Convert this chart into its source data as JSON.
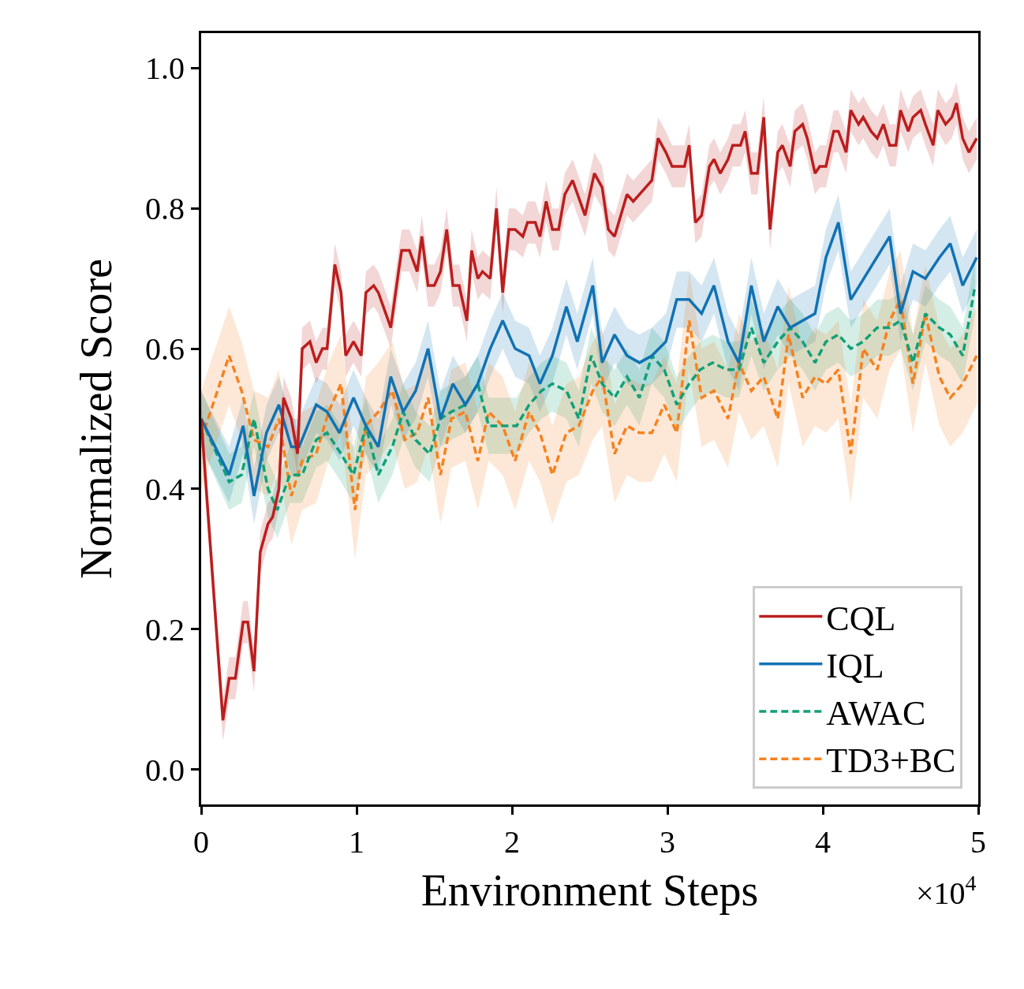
{
  "chart_data": {
    "type": "line",
    "xlabel": "Environment Steps",
    "ylabel": "Normalized Score",
    "annotations": [
      "×10$^{4}$"
    ],
    "xlim": [
      0,
      5
    ],
    "xticks": [
      0,
      1,
      2,
      3,
      4,
      5
    ],
    "ylim": [
      -0.05,
      1.05
    ],
    "yticks": [
      {
        "value": 0,
        "label": "0.0"
      },
      {
        "value": 0.2,
        "label": "0.2"
      },
      {
        "value": 0.4,
        "label": "0.4"
      },
      {
        "value": 0.6,
        "label": "0.6"
      },
      {
        "value": 0.8,
        "label": "0.8"
      },
      {
        "value": 1,
        "label": "1.0"
      }
    ],
    "legend": "bottom right",
    "series": [
      {
        "name": "CQL",
        "color": "#bb1e1e",
        "line_style": "solid",
        "x": [
          0,
          0.14,
          0.18,
          0.22,
          0.27,
          0.3,
          0.34,
          0.38,
          0.43,
          0.46,
          0.5,
          0.53,
          0.58,
          0.62,
          0.65,
          0.7,
          0.74,
          0.78,
          0.81,
          0.86,
          0.9,
          0.93,
          0.98,
          1.03,
          1.06,
          1.11,
          1.14,
          1.22,
          1.27,
          1.29,
          1.34,
          1.39,
          1.42,
          1.46,
          1.5,
          1.54,
          1.58,
          1.62,
          1.66,
          1.71,
          1.74,
          1.78,
          1.81,
          1.86,
          1.9,
          1.94,
          1.98,
          2.02,
          2.07,
          2.1,
          2.15,
          2.18,
          2.22,
          2.26,
          2.3,
          2.34,
          2.39,
          2.47,
          2.53,
          2.58,
          2.62,
          2.66,
          2.74,
          2.78,
          2.86,
          2.9,
          2.94,
          2.99,
          3.03,
          3.06,
          3.11,
          3.14,
          3.18,
          3.22,
          3.27,
          3.3,
          3.34,
          3.39,
          3.42,
          3.47,
          3.5,
          3.54,
          3.58,
          3.62,
          3.66,
          3.71,
          3.74,
          3.79,
          3.82,
          3.87,
          3.9,
          3.95,
          3.98,
          4.02,
          4.07,
          4.1,
          4.15,
          4.18,
          4.23,
          4.26,
          4.31,
          4.35,
          4.39,
          4.43,
          4.47,
          4.5,
          4.55,
          4.58,
          4.63,
          4.66,
          4.71,
          4.74,
          4.79,
          4.83,
          4.86,
          4.9,
          4.94,
          4.99
        ],
        "values": [
          0.5,
          0.07,
          0.13,
          0.13,
          0.21,
          0.21,
          0.14,
          0.31,
          0.35,
          0.36,
          0.4,
          0.53,
          0.5,
          0.45,
          0.6,
          0.61,
          0.58,
          0.6,
          0.6,
          0.72,
          0.68,
          0.59,
          0.61,
          0.59,
          0.68,
          0.69,
          0.68,
          0.63,
          0.71,
          0.74,
          0.74,
          0.71,
          0.76,
          0.69,
          0.69,
          0.71,
          0.77,
          0.69,
          0.69,
          0.64,
          0.74,
          0.7,
          0.71,
          0.7,
          0.8,
          0.68,
          0.77,
          0.77,
          0.76,
          0.78,
          0.78,
          0.76,
          0.81,
          0.77,
          0.77,
          0.82,
          0.84,
          0.79,
          0.85,
          0.83,
          0.77,
          0.76,
          0.82,
          0.81,
          0.83,
          0.84,
          0.9,
          0.88,
          0.86,
          0.86,
          0.86,
          0.89,
          0.78,
          0.79,
          0.86,
          0.87,
          0.85,
          0.87,
          0.89,
          0.89,
          0.91,
          0.85,
          0.85,
          0.93,
          0.77,
          0.88,
          0.89,
          0.86,
          0.91,
          0.92,
          0.9,
          0.85,
          0.86,
          0.86,
          0.91,
          0.91,
          0.88,
          0.94,
          0.92,
          0.93,
          0.91,
          0.9,
          0.92,
          0.89,
          0.89,
          0.94,
          0.91,
          0.93,
          0.94,
          0.92,
          0.89,
          0.94,
          0.92,
          0.93,
          0.95,
          0.9,
          0.88,
          0.9
        ],
        "lower": [
          0.47,
          0.04,
          0.1,
          0.1,
          0.18,
          0.18,
          0.11,
          0.28,
          0.32,
          0.33,
          0.37,
          0.5,
          0.47,
          0.42,
          0.57,
          0.58,
          0.55,
          0.57,
          0.57,
          0.69,
          0.65,
          0.56,
          0.58,
          0.56,
          0.65,
          0.66,
          0.65,
          0.6,
          0.68,
          0.71,
          0.71,
          0.68,
          0.73,
          0.66,
          0.66,
          0.68,
          0.74,
          0.66,
          0.66,
          0.61,
          0.71,
          0.67,
          0.68,
          0.67,
          0.77,
          0.65,
          0.74,
          0.74,
          0.73,
          0.75,
          0.75,
          0.73,
          0.78,
          0.74,
          0.74,
          0.79,
          0.81,
          0.76,
          0.82,
          0.8,
          0.74,
          0.73,
          0.79,
          0.78,
          0.8,
          0.81,
          0.87,
          0.85,
          0.83,
          0.83,
          0.83,
          0.86,
          0.75,
          0.76,
          0.83,
          0.84,
          0.82,
          0.84,
          0.86,
          0.86,
          0.88,
          0.82,
          0.82,
          0.9,
          0.74,
          0.85,
          0.86,
          0.83,
          0.88,
          0.89,
          0.87,
          0.82,
          0.83,
          0.83,
          0.88,
          0.88,
          0.85,
          0.91,
          0.89,
          0.9,
          0.88,
          0.87,
          0.89,
          0.86,
          0.86,
          0.91,
          0.88,
          0.9,
          0.91,
          0.89,
          0.86,
          0.91,
          0.89,
          0.9,
          0.92,
          0.87,
          0.85,
          0.87
        ],
        "upper": [
          0.53,
          0.1,
          0.16,
          0.16,
          0.24,
          0.24,
          0.17,
          0.34,
          0.38,
          0.39,
          0.43,
          0.56,
          0.53,
          0.48,
          0.63,
          0.64,
          0.61,
          0.63,
          0.63,
          0.75,
          0.71,
          0.62,
          0.64,
          0.62,
          0.71,
          0.72,
          0.71,
          0.66,
          0.74,
          0.77,
          0.77,
          0.74,
          0.79,
          0.72,
          0.72,
          0.74,
          0.8,
          0.72,
          0.72,
          0.67,
          0.77,
          0.73,
          0.74,
          0.73,
          0.83,
          0.71,
          0.8,
          0.8,
          0.79,
          0.81,
          0.81,
          0.79,
          0.84,
          0.8,
          0.8,
          0.85,
          0.87,
          0.82,
          0.88,
          0.86,
          0.8,
          0.79,
          0.85,
          0.84,
          0.86,
          0.87,
          0.93,
          0.91,
          0.89,
          0.89,
          0.89,
          0.92,
          0.81,
          0.82,
          0.89,
          0.9,
          0.88,
          0.9,
          0.92,
          0.92,
          0.94,
          0.88,
          0.88,
          0.96,
          0.8,
          0.91,
          0.92,
          0.89,
          0.94,
          0.95,
          0.93,
          0.88,
          0.89,
          0.89,
          0.94,
          0.94,
          0.91,
          0.97,
          0.95,
          0.96,
          0.94,
          0.93,
          0.95,
          0.92,
          0.92,
          0.97,
          0.94,
          0.96,
          0.97,
          0.95,
          0.92,
          0.97,
          0.95,
          0.96,
          0.98,
          0.93,
          0.91,
          0.93
        ]
      },
      {
        "name": "IQL",
        "color": "#1172b3",
        "line_style": "solid",
        "x": [
          0,
          0.18,
          0.27,
          0.34,
          0.42,
          0.5,
          0.58,
          0.63,
          0.74,
          0.81,
          0.89,
          0.98,
          1.06,
          1.14,
          1.22,
          1.3,
          1.38,
          1.46,
          1.54,
          1.62,
          1.7,
          1.78,
          1.86,
          1.94,
          2.02,
          2.11,
          2.18,
          2.26,
          2.35,
          2.42,
          2.52,
          2.58,
          2.66,
          2.74,
          2.82,
          2.9,
          2.99,
          3.06,
          3.14,
          3.22,
          3.3,
          3.39,
          3.46,
          3.54,
          3.62,
          3.71,
          3.79,
          3.87,
          3.95,
          4.02,
          4.1,
          4.18,
          4.43,
          4.5,
          4.58,
          4.66,
          4.75,
          4.82,
          4.9,
          4.99
        ],
        "values": [
          0.5,
          0.42,
          0.49,
          0.39,
          0.48,
          0.52,
          0.46,
          0.46,
          0.52,
          0.51,
          0.48,
          0.53,
          0.49,
          0.46,
          0.56,
          0.51,
          0.54,
          0.6,
          0.5,
          0.55,
          0.52,
          0.55,
          0.6,
          0.64,
          0.6,
          0.59,
          0.55,
          0.59,
          0.66,
          0.61,
          0.69,
          0.58,
          0.62,
          0.59,
          0.58,
          0.59,
          0.61,
          0.67,
          0.67,
          0.65,
          0.69,
          0.61,
          0.58,
          0.69,
          0.61,
          0.66,
          0.63,
          0.64,
          0.65,
          0.73,
          0.78,
          0.67,
          0.76,
          0.65,
          0.71,
          0.7,
          0.73,
          0.75,
          0.69,
          0.73
        ],
        "lower": [
          0.46,
          0.38,
          0.45,
          0.35,
          0.44,
          0.48,
          0.42,
          0.42,
          0.48,
          0.47,
          0.44,
          0.49,
          0.45,
          0.42,
          0.52,
          0.47,
          0.5,
          0.56,
          0.46,
          0.51,
          0.48,
          0.51,
          0.56,
          0.6,
          0.56,
          0.55,
          0.51,
          0.55,
          0.62,
          0.57,
          0.65,
          0.54,
          0.58,
          0.55,
          0.54,
          0.55,
          0.57,
          0.63,
          0.63,
          0.61,
          0.65,
          0.57,
          0.54,
          0.65,
          0.57,
          0.62,
          0.59,
          0.6,
          0.61,
          0.69,
          0.74,
          0.63,
          0.72,
          0.61,
          0.67,
          0.66,
          0.69,
          0.71,
          0.65,
          0.69
        ],
        "upper": [
          0.54,
          0.46,
          0.53,
          0.43,
          0.52,
          0.56,
          0.5,
          0.5,
          0.56,
          0.55,
          0.52,
          0.57,
          0.53,
          0.5,
          0.6,
          0.55,
          0.58,
          0.64,
          0.54,
          0.59,
          0.56,
          0.59,
          0.64,
          0.68,
          0.64,
          0.63,
          0.59,
          0.63,
          0.7,
          0.65,
          0.73,
          0.62,
          0.66,
          0.63,
          0.62,
          0.63,
          0.65,
          0.71,
          0.71,
          0.69,
          0.73,
          0.65,
          0.62,
          0.73,
          0.65,
          0.7,
          0.67,
          0.68,
          0.69,
          0.77,
          0.82,
          0.71,
          0.8,
          0.69,
          0.75,
          0.74,
          0.77,
          0.79,
          0.73,
          0.77
        ]
      },
      {
        "name": "AWAC",
        "color": "#12a077",
        "line_style": "dashed",
        "x": [
          0,
          0.18,
          0.26,
          0.34,
          0.43,
          0.49,
          0.57,
          0.65,
          0.74,
          0.81,
          0.9,
          0.98,
          1.06,
          1.14,
          1.23,
          1.3,
          1.38,
          1.47,
          1.54,
          1.61,
          1.7,
          1.78,
          1.85,
          1.94,
          2.03,
          2.11,
          2.19,
          2.26,
          2.35,
          2.43,
          2.51,
          2.58,
          2.66,
          2.74,
          2.82,
          2.9,
          2.98,
          3.06,
          3.14,
          3.21,
          3.29,
          3.38,
          3.46,
          3.54,
          3.62,
          3.71,
          3.79,
          3.87,
          3.95,
          4.02,
          4.1,
          4.18,
          4.26,
          4.35,
          4.43,
          4.5,
          4.58,
          4.66,
          4.75,
          4.82,
          4.9,
          4.98
        ],
        "values": [
          0.5,
          0.41,
          0.42,
          0.5,
          0.4,
          0.37,
          0.42,
          0.42,
          0.47,
          0.48,
          0.45,
          0.42,
          0.49,
          0.42,
          0.46,
          0.51,
          0.47,
          0.45,
          0.5,
          0.51,
          0.52,
          0.55,
          0.49,
          0.49,
          0.49,
          0.52,
          0.54,
          0.55,
          0.54,
          0.5,
          0.59,
          0.55,
          0.53,
          0.56,
          0.53,
          0.59,
          0.57,
          0.52,
          0.55,
          0.57,
          0.58,
          0.57,
          0.57,
          0.63,
          0.58,
          0.61,
          0.63,
          0.61,
          0.58,
          0.61,
          0.62,
          0.6,
          0.61,
          0.63,
          0.63,
          0.64,
          0.58,
          0.65,
          0.63,
          0.62,
          0.59,
          0.69
        ],
        "lower": [
          0.46,
          0.37,
          0.38,
          0.46,
          0.36,
          0.33,
          0.38,
          0.38,
          0.43,
          0.44,
          0.41,
          0.38,
          0.45,
          0.38,
          0.42,
          0.47,
          0.43,
          0.41,
          0.46,
          0.47,
          0.48,
          0.51,
          0.45,
          0.45,
          0.45,
          0.48,
          0.5,
          0.51,
          0.5,
          0.46,
          0.55,
          0.51,
          0.49,
          0.52,
          0.49,
          0.55,
          0.53,
          0.48,
          0.51,
          0.53,
          0.54,
          0.53,
          0.53,
          0.59,
          0.54,
          0.57,
          0.59,
          0.57,
          0.54,
          0.57,
          0.58,
          0.56,
          0.57,
          0.59,
          0.59,
          0.6,
          0.54,
          0.61,
          0.59,
          0.58,
          0.55,
          0.65
        ],
        "upper": [
          0.54,
          0.45,
          0.46,
          0.54,
          0.44,
          0.41,
          0.46,
          0.46,
          0.51,
          0.52,
          0.49,
          0.46,
          0.53,
          0.46,
          0.5,
          0.55,
          0.51,
          0.49,
          0.54,
          0.55,
          0.56,
          0.59,
          0.53,
          0.53,
          0.53,
          0.56,
          0.58,
          0.59,
          0.58,
          0.54,
          0.63,
          0.59,
          0.57,
          0.6,
          0.57,
          0.63,
          0.61,
          0.56,
          0.59,
          0.61,
          0.62,
          0.61,
          0.61,
          0.67,
          0.62,
          0.65,
          0.67,
          0.65,
          0.62,
          0.65,
          0.66,
          0.64,
          0.65,
          0.67,
          0.67,
          0.68,
          0.62,
          0.69,
          0.67,
          0.66,
          0.63,
          0.73
        ]
      },
      {
        "name": "TD3+BC",
        "color": "#f5821f",
        "line_style": "dashed",
        "x": [
          0,
          0.18,
          0.26,
          0.34,
          0.43,
          0.5,
          0.58,
          0.65,
          0.74,
          0.82,
          0.9,
          0.99,
          1.06,
          1.14,
          1.23,
          1.31,
          1.39,
          1.46,
          1.54,
          1.61,
          1.7,
          1.78,
          1.85,
          1.94,
          2.02,
          2.11,
          2.18,
          2.26,
          2.35,
          2.43,
          2.52,
          2.58,
          2.66,
          2.74,
          2.82,
          2.9,
          2.98,
          3.06,
          3.14,
          3.22,
          3.3,
          3.39,
          3.46,
          3.54,
          3.62,
          3.71,
          3.78,
          3.87,
          3.95,
          4.02,
          4.1,
          4.18,
          4.26,
          4.35,
          4.43,
          4.5,
          4.58,
          4.66,
          4.75,
          4.82,
          4.9,
          4.99
        ],
        "values": [
          0.47,
          0.59,
          0.54,
          0.47,
          0.46,
          0.5,
          0.39,
          0.44,
          0.45,
          0.51,
          0.55,
          0.37,
          0.49,
          0.51,
          0.54,
          0.47,
          0.48,
          0.53,
          0.42,
          0.5,
          0.51,
          0.44,
          0.51,
          0.49,
          0.44,
          0.51,
          0.48,
          0.42,
          0.48,
          0.49,
          0.54,
          0.56,
          0.45,
          0.49,
          0.48,
          0.48,
          0.52,
          0.48,
          0.64,
          0.53,
          0.54,
          0.5,
          0.58,
          0.54,
          0.56,
          0.5,
          0.62,
          0.53,
          0.56,
          0.55,
          0.57,
          0.45,
          0.6,
          0.57,
          0.64,
          0.67,
          0.55,
          0.65,
          0.56,
          0.53,
          0.55,
          0.59
        ],
        "lower": [
          0.4,
          0.52,
          0.47,
          0.4,
          0.39,
          0.43,
          0.32,
          0.37,
          0.38,
          0.44,
          0.48,
          0.3,
          0.42,
          0.44,
          0.47,
          0.4,
          0.41,
          0.46,
          0.35,
          0.43,
          0.44,
          0.37,
          0.44,
          0.42,
          0.37,
          0.44,
          0.41,
          0.35,
          0.41,
          0.42,
          0.47,
          0.49,
          0.38,
          0.42,
          0.41,
          0.41,
          0.45,
          0.41,
          0.57,
          0.46,
          0.47,
          0.43,
          0.51,
          0.47,
          0.49,
          0.43,
          0.55,
          0.46,
          0.49,
          0.48,
          0.5,
          0.38,
          0.53,
          0.5,
          0.57,
          0.6,
          0.48,
          0.58,
          0.49,
          0.46,
          0.48,
          0.52
        ],
        "upper": [
          0.54,
          0.66,
          0.61,
          0.54,
          0.53,
          0.57,
          0.46,
          0.51,
          0.52,
          0.58,
          0.62,
          0.44,
          0.56,
          0.58,
          0.61,
          0.54,
          0.55,
          0.6,
          0.49,
          0.57,
          0.58,
          0.51,
          0.58,
          0.56,
          0.51,
          0.58,
          0.55,
          0.49,
          0.55,
          0.56,
          0.61,
          0.63,
          0.52,
          0.56,
          0.55,
          0.55,
          0.59,
          0.55,
          0.71,
          0.6,
          0.61,
          0.57,
          0.65,
          0.61,
          0.63,
          0.57,
          0.69,
          0.6,
          0.63,
          0.62,
          0.64,
          0.52,
          0.67,
          0.64,
          0.71,
          0.74,
          0.62,
          0.72,
          0.63,
          0.6,
          0.62,
          0.66
        ]
      }
    ]
  }
}
